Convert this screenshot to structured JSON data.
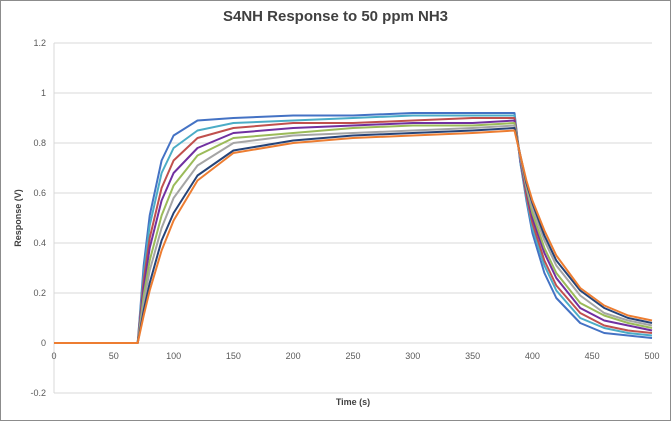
{
  "chart_data": {
    "type": "line",
    "title": "S4NH Response to 50 ppm NH3",
    "xlabel": "Time (s)",
    "ylabel": "Response (V)",
    "xlim": [
      0,
      500
    ],
    "ylim": [
      -0.2,
      1.2
    ],
    "xticks": [
      0,
      50,
      100,
      150,
      200,
      250,
      300,
      350,
      400,
      450,
      500
    ],
    "yticks": [
      -0.2,
      0,
      0.2,
      0.4,
      0.6,
      0.8,
      1,
      1.2
    ],
    "grid": "horizontal",
    "legend": "none",
    "x": [
      0,
      50,
      70,
      75,
      80,
      90,
      100,
      120,
      150,
      200,
      250,
      300,
      350,
      385,
      390,
      395,
      400,
      410,
      420,
      440,
      460,
      480,
      500
    ],
    "series": [
      {
        "color": "#4472C4",
        "values": [
          0,
          0,
          0,
          0.31,
          0.51,
          0.73,
          0.83,
          0.89,
          0.9,
          0.91,
          0.91,
          0.92,
          0.92,
          0.92,
          0.72,
          0.57,
          0.44,
          0.28,
          0.18,
          0.08,
          0.04,
          0.03,
          0.02
        ]
      },
      {
        "color": "#4BACC6",
        "values": [
          0,
          0,
          0,
          0.28,
          0.47,
          0.68,
          0.78,
          0.85,
          0.88,
          0.89,
          0.9,
          0.91,
          0.91,
          0.91,
          0.72,
          0.58,
          0.46,
          0.31,
          0.21,
          0.1,
          0.06,
          0.04,
          0.03
        ]
      },
      {
        "color": "#C0504D",
        "values": [
          0,
          0,
          0,
          0.25,
          0.42,
          0.62,
          0.73,
          0.82,
          0.86,
          0.88,
          0.88,
          0.89,
          0.9,
          0.9,
          0.73,
          0.59,
          0.48,
          0.33,
          0.23,
          0.12,
          0.07,
          0.05,
          0.04
        ]
      },
      {
        "color": "#7030A0",
        "values": [
          0,
          0,
          0,
          0.22,
          0.38,
          0.57,
          0.68,
          0.78,
          0.84,
          0.86,
          0.87,
          0.88,
          0.88,
          0.89,
          0.73,
          0.61,
          0.5,
          0.36,
          0.26,
          0.14,
          0.09,
          0.07,
          0.05
        ]
      },
      {
        "color": "#9BBB59",
        "values": [
          0,
          0,
          0,
          0.19,
          0.33,
          0.51,
          0.63,
          0.75,
          0.82,
          0.84,
          0.86,
          0.87,
          0.87,
          0.88,
          0.74,
          0.62,
          0.52,
          0.38,
          0.28,
          0.16,
          0.11,
          0.08,
          0.06
        ]
      },
      {
        "color": "#A5A5A5",
        "values": [
          0,
          0,
          0,
          0.16,
          0.29,
          0.46,
          0.58,
          0.71,
          0.8,
          0.83,
          0.84,
          0.85,
          0.86,
          0.87,
          0.74,
          0.63,
          0.54,
          0.41,
          0.31,
          0.19,
          0.12,
          0.09,
          0.07
        ]
      },
      {
        "color": "#264478",
        "values": [
          0,
          0,
          0,
          0.13,
          0.24,
          0.41,
          0.52,
          0.67,
          0.77,
          0.81,
          0.83,
          0.84,
          0.85,
          0.86,
          0.75,
          0.64,
          0.56,
          0.43,
          0.33,
          0.21,
          0.14,
          0.1,
          0.08
        ]
      },
      {
        "color": "#ED7D31",
        "values": [
          0,
          0,
          0,
          0.11,
          0.21,
          0.37,
          0.49,
          0.65,
          0.76,
          0.8,
          0.82,
          0.83,
          0.84,
          0.85,
          0.75,
          0.65,
          0.57,
          0.45,
          0.35,
          0.22,
          0.15,
          0.11,
          0.09
        ]
      }
    ]
  }
}
